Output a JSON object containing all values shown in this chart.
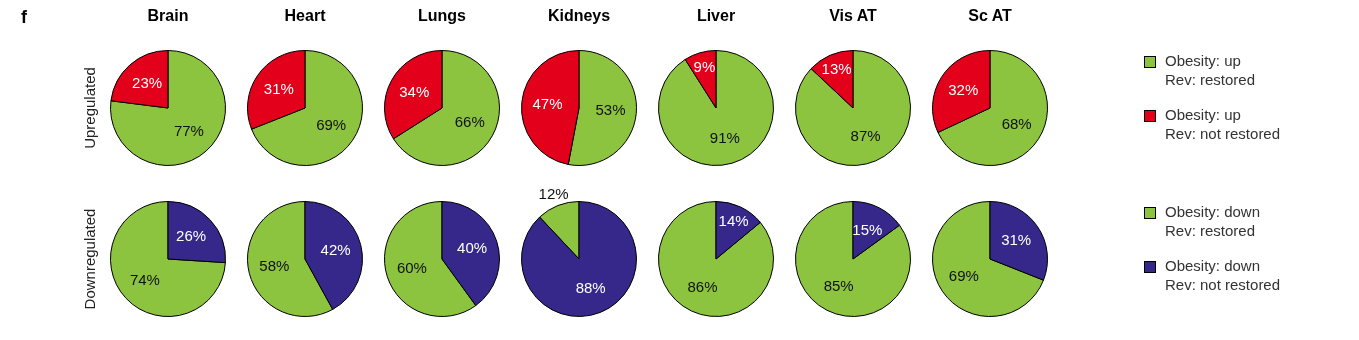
{
  "chart_data": [
    {
      "type": "pie",
      "title": "Brain",
      "ylabel": "Upregulated",
      "annotations": [
        "f"
      ],
      "values": [
        77,
        23
      ],
      "value_labels": [
        "77%",
        "23%"
      ],
      "colors": [
        "#8cc43f",
        "#e2001a"
      ]
    },
    {
      "type": "pie",
      "title": "Heart",
      "values": [
        69,
        31
      ],
      "value_labels": [
        "69%",
        "31%"
      ],
      "colors": [
        "#8cc43f",
        "#e2001a"
      ]
    },
    {
      "type": "pie",
      "title": "Lungs",
      "values": [
        66,
        34
      ],
      "value_labels": [
        "66%",
        "34%"
      ],
      "colors": [
        "#8cc43f",
        "#e2001a"
      ]
    },
    {
      "type": "pie",
      "title": "Kidneys",
      "values": [
        53,
        47
      ],
      "value_labels": [
        "53%",
        "47%"
      ],
      "colors": [
        "#8cc43f",
        "#e2001a"
      ]
    },
    {
      "type": "pie",
      "title": "Liver",
      "values": [
        91,
        9
      ],
      "value_labels": [
        "91%",
        "9%"
      ],
      "colors": [
        "#8cc43f",
        "#e2001a"
      ]
    },
    {
      "type": "pie",
      "title": "Vis AT",
      "values": [
        87,
        13
      ],
      "value_labels": [
        "87%",
        "13%"
      ],
      "colors": [
        "#8cc43f",
        "#e2001a"
      ]
    },
    {
      "type": "pie",
      "title": "Sc AT",
      "categories": [
        "Obesity: up\nRev: restored",
        "Obesity: up\nRev: not restored"
      ],
      "values": [
        68,
        32
      ],
      "value_labels": [
        "68%",
        "32%"
      ],
      "colors": [
        "#8cc43f",
        "#e2001a"
      ],
      "legend": "right"
    },
    {
      "type": "pie",
      "ylabel": "Downregulated",
      "values": [
        74,
        26
      ],
      "value_labels": [
        "74%",
        "26%"
      ],
      "colors": [
        "#8cc43f",
        "#35288a"
      ]
    },
    {
      "type": "pie",
      "values": [
        58,
        42
      ],
      "value_labels": [
        "58%",
        "42%"
      ],
      "colors": [
        "#8cc43f",
        "#35288a"
      ]
    },
    {
      "type": "pie",
      "values": [
        60,
        40
      ],
      "value_labels": [
        "60%",
        "40%"
      ],
      "colors": [
        "#8cc43f",
        "#35288a"
      ]
    },
    {
      "type": "pie",
      "values": [
        12,
        88
      ],
      "value_labels": [
        "12%",
        "88%"
      ],
      "colors": [
        "#8cc43f",
        "#35288a"
      ]
    },
    {
      "type": "pie",
      "values": [
        86,
        14
      ],
      "value_labels": [
        "86%",
        "14%"
      ],
      "colors": [
        "#8cc43f",
        "#35288a"
      ]
    },
    {
      "type": "pie",
      "values": [
        85,
        15
      ],
      "value_labels": [
        "85%",
        "15%"
      ],
      "colors": [
        "#8cc43f",
        "#35288a"
      ]
    },
    {
      "type": "pie",
      "categories": [
        "Obesity: down\nRev: restored",
        "Obesity: down\nRev: not restored"
      ],
      "values": [
        69,
        31
      ],
      "value_labels": [
        "69%",
        "31%"
      ],
      "colors": [
        "#8cc43f",
        "#35288a"
      ],
      "legend": "right"
    }
  ]
}
